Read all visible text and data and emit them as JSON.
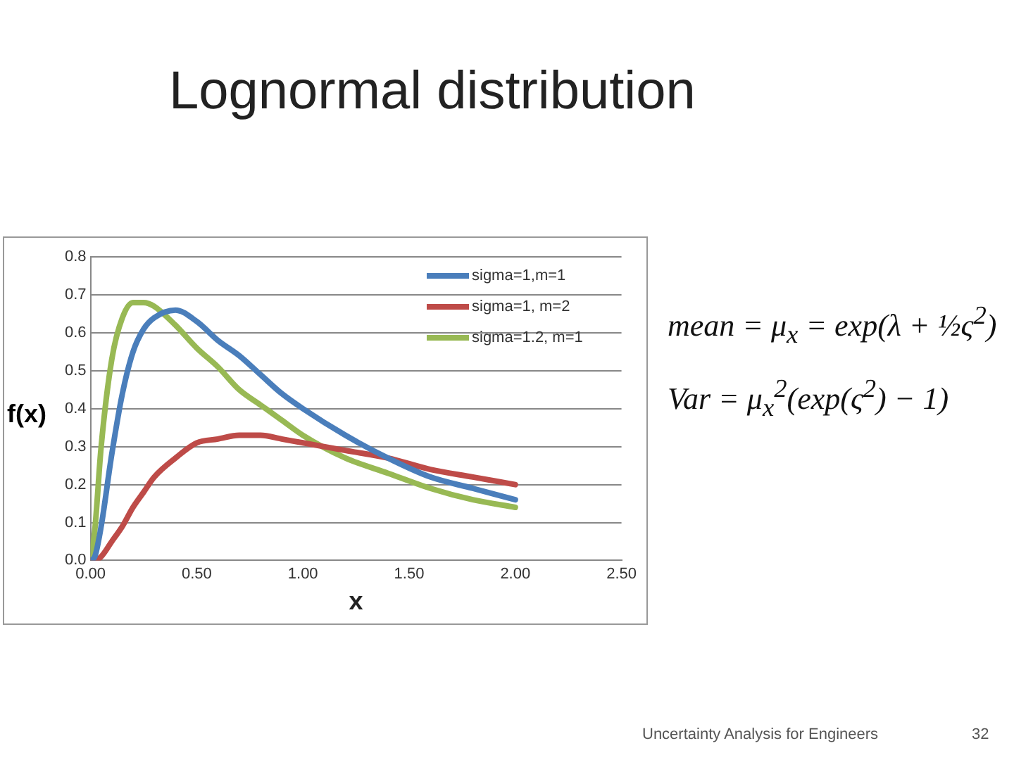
{
  "chart_data": {
    "type": "line",
    "title": "Lognormal distribution",
    "xlabel": "x",
    "ylabel": "f(x)",
    "x": [
      0,
      0.02,
      0.05,
      0.1,
      0.15,
      0.2,
      0.25,
      0.3,
      0.4,
      0.5,
      0.6,
      0.7,
      0.8,
      0.9,
      1.0,
      1.2,
      1.4,
      1.6,
      1.8,
      2.0
    ],
    "series": [
      {
        "name": "sigma=1,m=1",
        "color": "#4a7ebb",
        "values": [
          0,
          0.01,
          0.09,
          0.28,
          0.44,
          0.55,
          0.61,
          0.64,
          0.66,
          0.63,
          0.58,
          0.54,
          0.49,
          0.44,
          0.4,
          0.33,
          0.27,
          0.22,
          0.19,
          0.16
        ]
      },
      {
        "name": "sigma=1, m=2",
        "color": "#be4b48",
        "values": [
          0,
          0,
          0.01,
          0.05,
          0.09,
          0.14,
          0.18,
          0.22,
          0.27,
          0.31,
          0.32,
          0.33,
          0.33,
          0.32,
          0.31,
          0.29,
          0.27,
          0.24,
          0.22,
          0.2
        ]
      },
      {
        "name": "sigma=1.2, m=1",
        "color": "#98b954",
        "values": [
          0,
          0.08,
          0.3,
          0.53,
          0.64,
          0.68,
          0.68,
          0.67,
          0.62,
          0.56,
          0.51,
          0.45,
          0.41,
          0.37,
          0.33,
          0.27,
          0.23,
          0.19,
          0.16,
          0.14
        ]
      }
    ],
    "xlim": [
      0,
      2.5
    ],
    "xticks": [
      {
        "value": 0,
        "label": "0.00"
      },
      {
        "value": 0.5,
        "label": "0.50"
      },
      {
        "value": 1,
        "label": "1.00"
      },
      {
        "value": 1.5,
        "label": "1.50"
      },
      {
        "value": 2,
        "label": "2.00"
      },
      {
        "value": 2.5,
        "label": "2.50"
      }
    ],
    "ylim": [
      0,
      0.8
    ],
    "yticks": [
      {
        "value": 0,
        "label": "0.0"
      },
      0.1,
      0.2,
      0.3,
      0.4,
      0.5,
      0.6,
      0.7,
      0.8
    ],
    "grid": "y",
    "legend": "top right",
    "marker": "none",
    "line_style": "solid",
    "annotations": [
      "mean = μ$_{x}$ = exp(λ + ½ς$^{2}$)",
      "Var = μ$_{x}$$^{2}$(exp(ς$^{2}$) − 1)",
      "Uncertainty Analysis for Engineers",
      "32"
    ]
  }
}
